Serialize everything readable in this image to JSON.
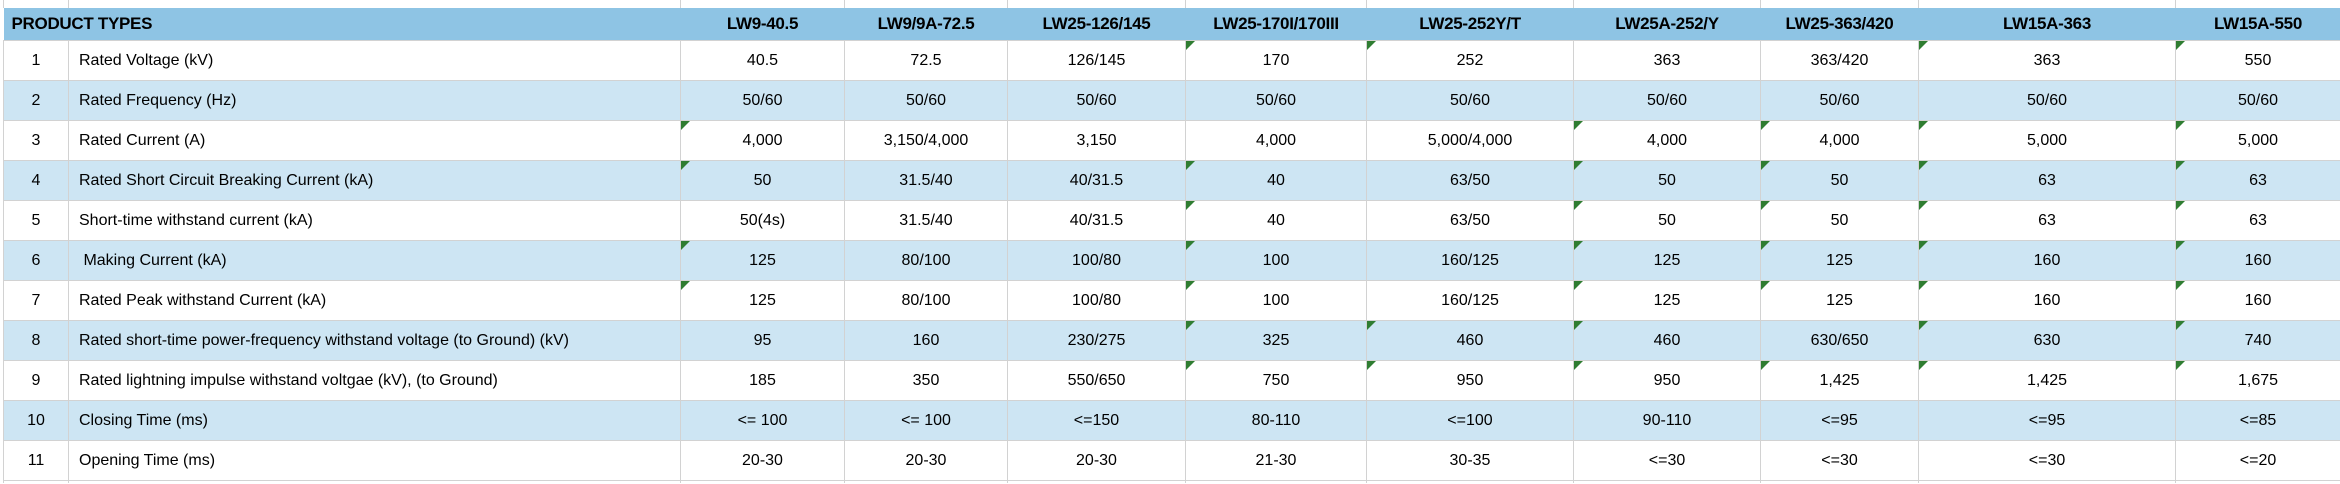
{
  "table": {
    "corner_label": "PRODUCT TYPES",
    "columns": [
      "LW9-40.5",
      "LW9/9A-72.5",
      "LW25-126/145",
      "LW25-170I/170III",
      "LW25-252Y/T",
      "LW25A-252/Y",
      "LW25-363/420",
      "LW15A-363",
      "LW15A-550"
    ],
    "rows": [
      {
        "num": "1",
        "label": "Rated Voltage (kV)",
        "values": [
          "40.5",
          "72.5",
          "126/145",
          "170",
          "252",
          "363",
          "363/420",
          "363",
          "550"
        ],
        "flags": [
          0,
          0,
          0,
          1,
          1,
          0,
          0,
          1,
          1
        ]
      },
      {
        "num": "2",
        "label": "Rated Frequency (Hz)",
        "values": [
          "50/60",
          "50/60",
          "50/60",
          "50/60",
          "50/60",
          "50/60",
          "50/60",
          "50/60",
          "50/60"
        ],
        "flags": [
          0,
          0,
          0,
          0,
          0,
          0,
          0,
          0,
          0
        ]
      },
      {
        "num": "3",
        "label": "Rated Current (A)",
        "values": [
          "4,000",
          "3,150/4,000",
          "3,150",
          "4,000",
          "5,000/4,000",
          "4,000",
          "4,000",
          "5,000",
          "5,000"
        ],
        "flags": [
          1,
          0,
          0,
          0,
          0,
          1,
          1,
          1,
          1
        ]
      },
      {
        "num": "4",
        "label": "Rated Short Circuit Breaking Current (kA)",
        "values": [
          "50",
          "31.5/40",
          "40/31.5",
          "40",
          "63/50",
          "50",
          "50",
          "63",
          "63"
        ],
        "flags": [
          1,
          0,
          0,
          1,
          0,
          1,
          1,
          1,
          1
        ]
      },
      {
        "num": "5",
        "label": "Short-time withstand current (kA)",
        "values": [
          "50(4s)",
          "31.5/40",
          "40/31.5",
          "40",
          "63/50",
          "50",
          "50",
          "63",
          "63"
        ],
        "flags": [
          0,
          0,
          0,
          1,
          0,
          1,
          1,
          1,
          1
        ]
      },
      {
        "num": "6",
        "label": " Making Current (kA)",
        "values": [
          "125",
          "80/100",
          "100/80",
          "100",
          "160/125",
          "125",
          "125",
          "160",
          "160"
        ],
        "flags": [
          1,
          0,
          0,
          1,
          0,
          1,
          1,
          1,
          1
        ]
      },
      {
        "num": "7",
        "label": "Rated Peak withstand Current (kA)",
        "values": [
          "125",
          "80/100",
          "100/80",
          "100",
          "160/125",
          "125",
          "125",
          "160",
          "160"
        ],
        "flags": [
          1,
          0,
          0,
          1,
          0,
          1,
          1,
          1,
          1
        ]
      },
      {
        "num": "8",
        "label": "Rated short-time power-frequency withstand voltage (to Ground) (kV)",
        "values": [
          "95",
          "160",
          "230/275",
          "325",
          "460",
          "460",
          "630/650",
          "630",
          "740"
        ],
        "flags": [
          0,
          0,
          0,
          1,
          1,
          1,
          0,
          1,
          1
        ]
      },
      {
        "num": "9",
        "label": "Rated lightning impulse withstand voltgae (kV), (to Ground)",
        "values": [
          "185",
          "350",
          "550/650",
          "750",
          "950",
          "950",
          "1,425",
          "1,425",
          "1,675"
        ],
        "flags": [
          0,
          0,
          0,
          1,
          1,
          1,
          1,
          1,
          1
        ]
      },
      {
        "num": "10",
        "label": "Closing Time (ms)",
        "values": [
          "<= 100",
          "<= 100",
          "<=150",
          "80-110",
          "<=100",
          "90-110",
          "<=95",
          "<=95",
          "<=85"
        ],
        "flags": [
          0,
          0,
          0,
          0,
          0,
          0,
          0,
          0,
          0
        ]
      },
      {
        "num": "11",
        "label": "Opening Time (ms)",
        "values": [
          "20-30",
          "20-30",
          "20-30",
          "21-30",
          "30-35",
          "<=30",
          "<=30",
          "<=30",
          "<=20"
        ],
        "flags": [
          0,
          0,
          0,
          0,
          0,
          0,
          0,
          0,
          0
        ]
      }
    ],
    "colors": {
      "header_background": "#8ec4e4",
      "banded_row_background": "#cde5f3",
      "error_indicator_green": "#2f7d31",
      "gridline": "#d2d2d2"
    }
  }
}
